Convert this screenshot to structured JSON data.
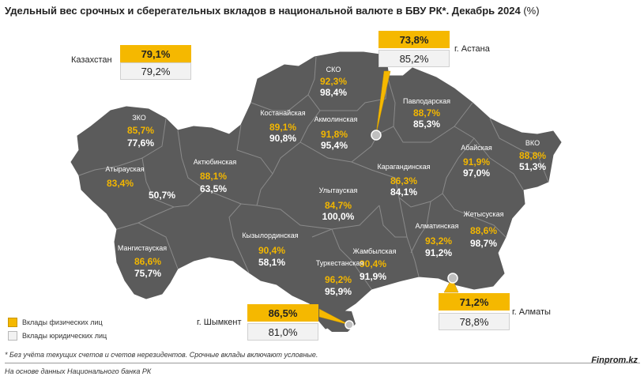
{
  "title": "Удельный вес срочных и сберегательных вкладов в национальной валюте в БВУ РК*. Декабрь 2024",
  "title_unit": "(%)",
  "colors": {
    "map": "#5b5b5b",
    "border": "#8a8a8a",
    "physical": "#f5b800",
    "physical_text": "#f2b600",
    "legal": "#f2f2f2"
  },
  "kazakhstan": {
    "label": "Казахстан",
    "physical": "79,1%",
    "legal": "79,2%"
  },
  "astana": {
    "label": "г. Астана",
    "physical": "73,8%",
    "legal": "85,2%"
  },
  "shymkent": {
    "label": "г. Шымкент",
    "physical": "86,5%",
    "legal": "81,0%"
  },
  "almaty_city": {
    "label": "г. Алматы",
    "physical": "71,2%",
    "legal": "78,8%"
  },
  "regions": {
    "sko": {
      "name": "СКО",
      "physical": "92,3%",
      "legal": "98,4%"
    },
    "pavl": {
      "name": "Павлодарская",
      "physical": "88,7%",
      "legal": "85,3%"
    },
    "kost": {
      "name": "Костанайская",
      "physical": "89,1%",
      "legal": "90,8%"
    },
    "akm": {
      "name": "Акмолинская",
      "physical": "91,8%",
      "legal": "95,4%"
    },
    "zko": {
      "name": "ЗКО",
      "physical": "85,7%",
      "legal": "77,6%"
    },
    "vko": {
      "name": "ВКО",
      "physical": "88,8%",
      "legal": "51,3%"
    },
    "abai": {
      "name": "Абайская",
      "physical": "91,9%",
      "legal": "97,0%"
    },
    "atyr": {
      "name": "Атырауская",
      "physical": "83,4%",
      "legal": "50,7%"
    },
    "akt": {
      "name": "Актюбинская",
      "physical": "88,1%",
      "legal": "63,5%"
    },
    "kar": {
      "name": "Карагандинская",
      "physical": "86,3%",
      "legal": "84,1%"
    },
    "ulyt": {
      "name": "Улытауская",
      "physical": "84,7%",
      "legal": "100,0%"
    },
    "alm": {
      "name": "Алматинская",
      "physical": "93,2%",
      "legal": "91,2%"
    },
    "zhet": {
      "name": "Жетысуская",
      "physical": "88,6%",
      "legal": "98,7%"
    },
    "kyz": {
      "name": "Кызылординская",
      "physical": "90,4%",
      "legal": "58,1%"
    },
    "mang": {
      "name": "Мангистауская",
      "physical": "86,6%",
      "legal": "75,7%"
    },
    "zham": {
      "name": "Жамбылская",
      "physical": "90,4%",
      "legal": "91,9%"
    },
    "turk": {
      "name": "Туркестанская",
      "physical": "96,2%",
      "legal": "95,9%"
    }
  },
  "legend": {
    "physical": "Вклады физических лиц",
    "legal": "Вклады юридических лиц"
  },
  "footnote": "* Без учёта текущих счетов и счетов нерезидентов. Срочные вклады включают условные.",
  "source": "На основе данных Национального банка РК",
  "brand": "Finprom.kz"
}
